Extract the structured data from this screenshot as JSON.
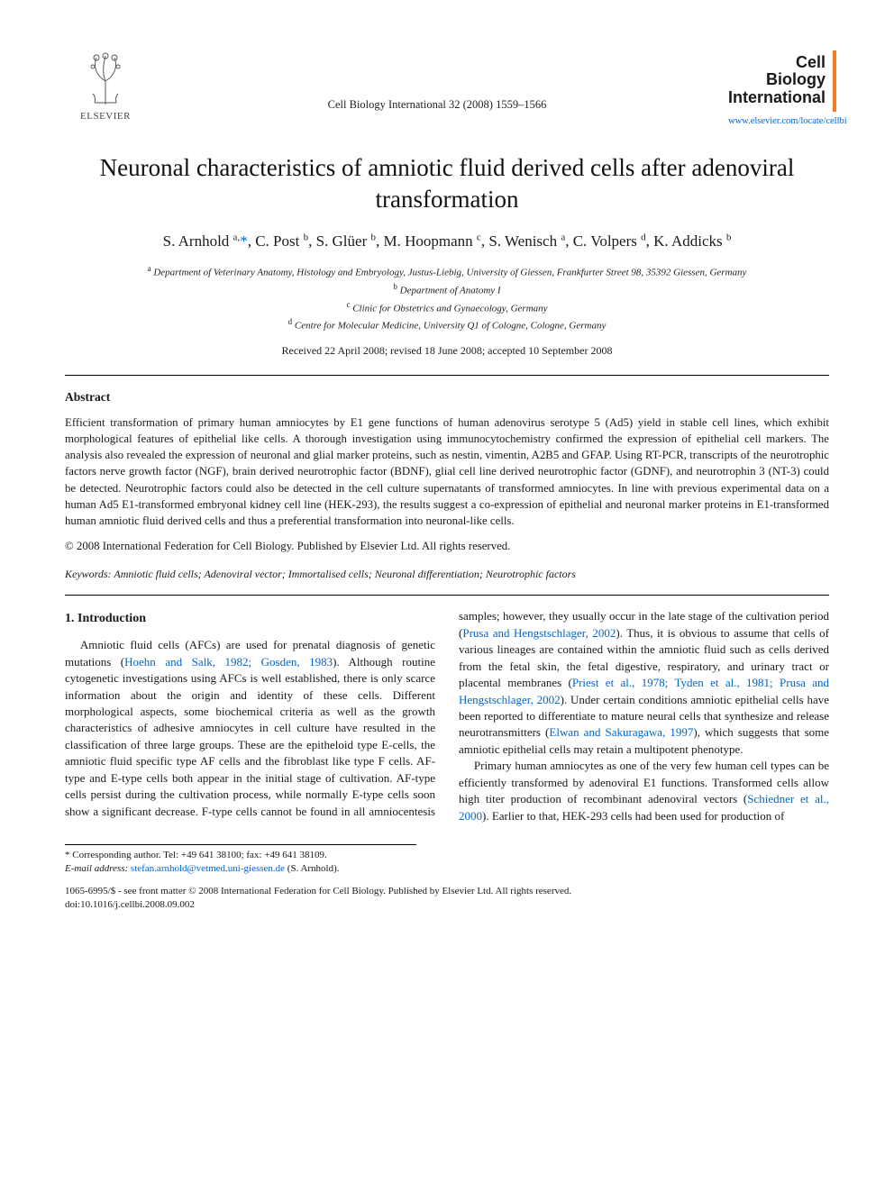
{
  "header": {
    "publisher_name": "ELSEVIER",
    "journal_ref": "Cell Biology International 32 (2008) 1559–1566",
    "journal_brand_lines": [
      "Cell",
      "Biology",
      "International"
    ],
    "journal_link": "www.elsevier.com/locate/cellbi",
    "brand_accent_color": "#f47b20"
  },
  "article": {
    "title": "Neuronal characteristics of amniotic fluid derived cells after adenoviral transformation",
    "authors_html": "S. Arnhold <sup>a,</sup><a href='#'>*</a>, C. Post <sup>b</sup>, S. Glüer <sup>b</sup>, M. Hoopmann <sup>c</sup>, S. Wenisch <sup>a</sup>, C. Volpers <sup>d</sup>, K. Addicks <sup>b</sup>",
    "affiliations": [
      {
        "sup": "a",
        "text": "Department of Veterinary Anatomy, Histology and Embryology, Justus-Liebig, University of Giessen, Frankfurter Street 98, 35392 Giessen, Germany"
      },
      {
        "sup": "b",
        "text": "Department of Anatomy I"
      },
      {
        "sup": "c",
        "text": "Clinic for Obstetrics and Gynaecology, Germany"
      },
      {
        "sup": "d",
        "text": "Centre for Molecular Medicine, University Q1 of Cologne, Cologne, Germany"
      }
    ],
    "dates": "Received 22 April 2008; revised 18 June 2008; accepted 10 September 2008"
  },
  "abstract": {
    "heading": "Abstract",
    "body": "Efficient transformation of primary human amniocytes by E1 gene functions of human adenovirus serotype 5 (Ad5) yield in stable cell lines, which exhibit morphological features of epithelial like cells. A thorough investigation using immunocytochemistry confirmed the expression of epithelial cell markers. The analysis also revealed the expression of neuronal and glial marker proteins, such as nestin, vimentin, A2B5 and GFAP. Using RT-PCR, transcripts of the neurotrophic factors nerve growth factor (NGF), brain derived neurotrophic factor (BDNF), glial cell line derived neurotrophic factor (GDNF), and neurotrophin 3 (NT-3) could be detected. Neurotrophic factors could also be detected in the cell culture supernatants of transformed amniocytes. In line with previous experimental data on a human Ad5 E1-transformed embryonal kidney cell line (HEK-293), the results suggest a co-expression of epithelial and neuronal marker proteins in E1-transformed human amniotic fluid derived cells and thus a preferential transformation into neuronal-like cells.",
    "copyright": "© 2008 International Federation for Cell Biology. Published by Elsevier Ltd. All rights reserved."
  },
  "keywords": {
    "label": "Keywords:",
    "text": "Amniotic fluid cells; Adenoviral vector; Immortalised cells; Neuronal differentiation; Neurotrophic factors"
  },
  "intro": {
    "heading": "1. Introduction",
    "p1_a": "Amniotic fluid cells (AFCs) are used for prenatal diagnosis of genetic mutations (",
    "p1_ref1": "Hoehn and Salk, 1982; Gosden, 1983",
    "p1_b": "). Although routine cytogenetic investigations using AFCs is well established, there is only scarce information about the origin and identity of these cells. Different morphological aspects, some biochemical criteria as well as the growth characteristics of adhesive amniocytes in cell culture have resulted in the classification of three large groups. These are the epitheloid type E-cells, the amniotic fluid specific type AF cells and the fibroblast like type F cells. AF-type and E-type cells both appear in the initial stage of cultivation. AF-type cells persist during the cultivation process, while normally E-type cells soon show a significant decrease. F-type cells cannot be found in all amniocentesis samples; however, they usually occur in the late stage of the cultivation period (",
    "p1_ref2": "Prusa and Hengstschlager, 2002",
    "p1_c": "). Thus, it is obvious to assume that cells of various lineages are contained within the amniotic fluid such as cells derived from the fetal skin, the fetal digestive, respiratory, and urinary tract or placental membranes (",
    "p1_ref3": "Priest et al., 1978; Tyden et al., 1981; Prusa and Hengstschlager, 2002",
    "p1_d": "). Under certain conditions amniotic epithelial cells have been reported to differentiate to mature neural cells that synthesize and release neurotransmitters (",
    "p1_ref4": "Elwan and Sakuragawa, 1997",
    "p1_e": "), which suggests that some amniotic epithelial cells may retain a multipotent phenotype.",
    "p2_a": "Primary human amniocytes as one of the very few human cell types can be efficiently transformed by adenoviral E1 functions. Transformed cells allow high titer production of recombinant adenoviral vectors (",
    "p2_ref1": "Schiedner et al., 2000",
    "p2_b": "). Earlier to that, HEK-293 cells had been used for production of"
  },
  "corresponding": {
    "line1": "* Corresponding author. Tel: +49 641 38100; fax: +49 641 38109.",
    "email_label": "E-mail address:",
    "email": "stefan.arnhold@vetmed.uni-giessen.de",
    "email_paren": "(S. Arnhold)."
  },
  "footer": {
    "line1": "1065-6995/$ - see front matter © 2008 International Federation for Cell Biology. Published by Elsevier Ltd. All rights reserved.",
    "doi": "doi:10.1016/j.cellbi.2008.09.002"
  },
  "colors": {
    "link": "#0066cc",
    "text": "#1a1a1a",
    "accent": "#f47b20",
    "background": "#ffffff"
  },
  "typography": {
    "title_fontsize": 27,
    "authors_fontsize": 17,
    "body_fontsize": 13,
    "abstract_fontsize": 12.8,
    "affil_fontsize": 11,
    "footer_fontsize": 11
  }
}
